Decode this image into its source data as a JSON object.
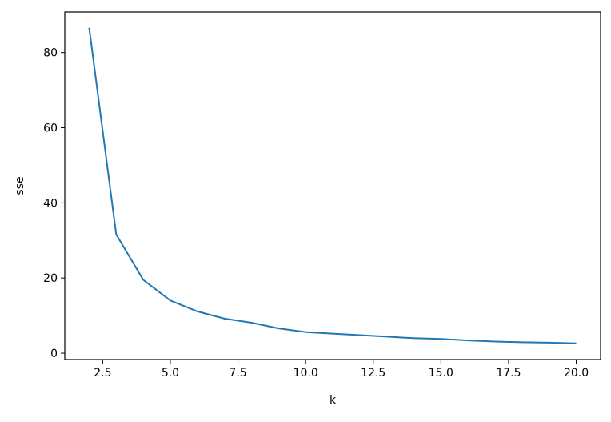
{
  "chart_data": {
    "type": "line",
    "title": "",
    "xlabel": "k",
    "ylabel": "sse",
    "xlim": [
      1.1,
      20.9
    ],
    "ylim": [
      -1.7,
      90.8
    ],
    "grid": false,
    "x_ticks": [
      2.5,
      5.0,
      7.5,
      10.0,
      12.5,
      15.0,
      17.5,
      20.0
    ],
    "x_tick_labels": [
      "2.5",
      "5.0",
      "7.5",
      "10.0",
      "12.5",
      "15.0",
      "17.5",
      "20.0"
    ],
    "y_ticks": [
      0,
      20,
      40,
      60,
      80
    ],
    "y_tick_labels": [
      "0",
      "20",
      "40",
      "60",
      "80"
    ],
    "series": [
      {
        "color": "#1f77b4",
        "x": [
          2,
          3,
          4,
          5,
          6,
          7,
          8,
          9,
          10,
          11,
          12,
          13,
          14,
          15,
          16,
          17,
          18,
          19,
          20
        ],
        "y": [
          86.6,
          31.6,
          19.5,
          14.0,
          11.1,
          9.2,
          8.1,
          6.6,
          5.6,
          5.2,
          4.8,
          4.4,
          4.0,
          3.8,
          3.4,
          3.1,
          2.9,
          2.8,
          2.6
        ]
      }
    ]
  }
}
